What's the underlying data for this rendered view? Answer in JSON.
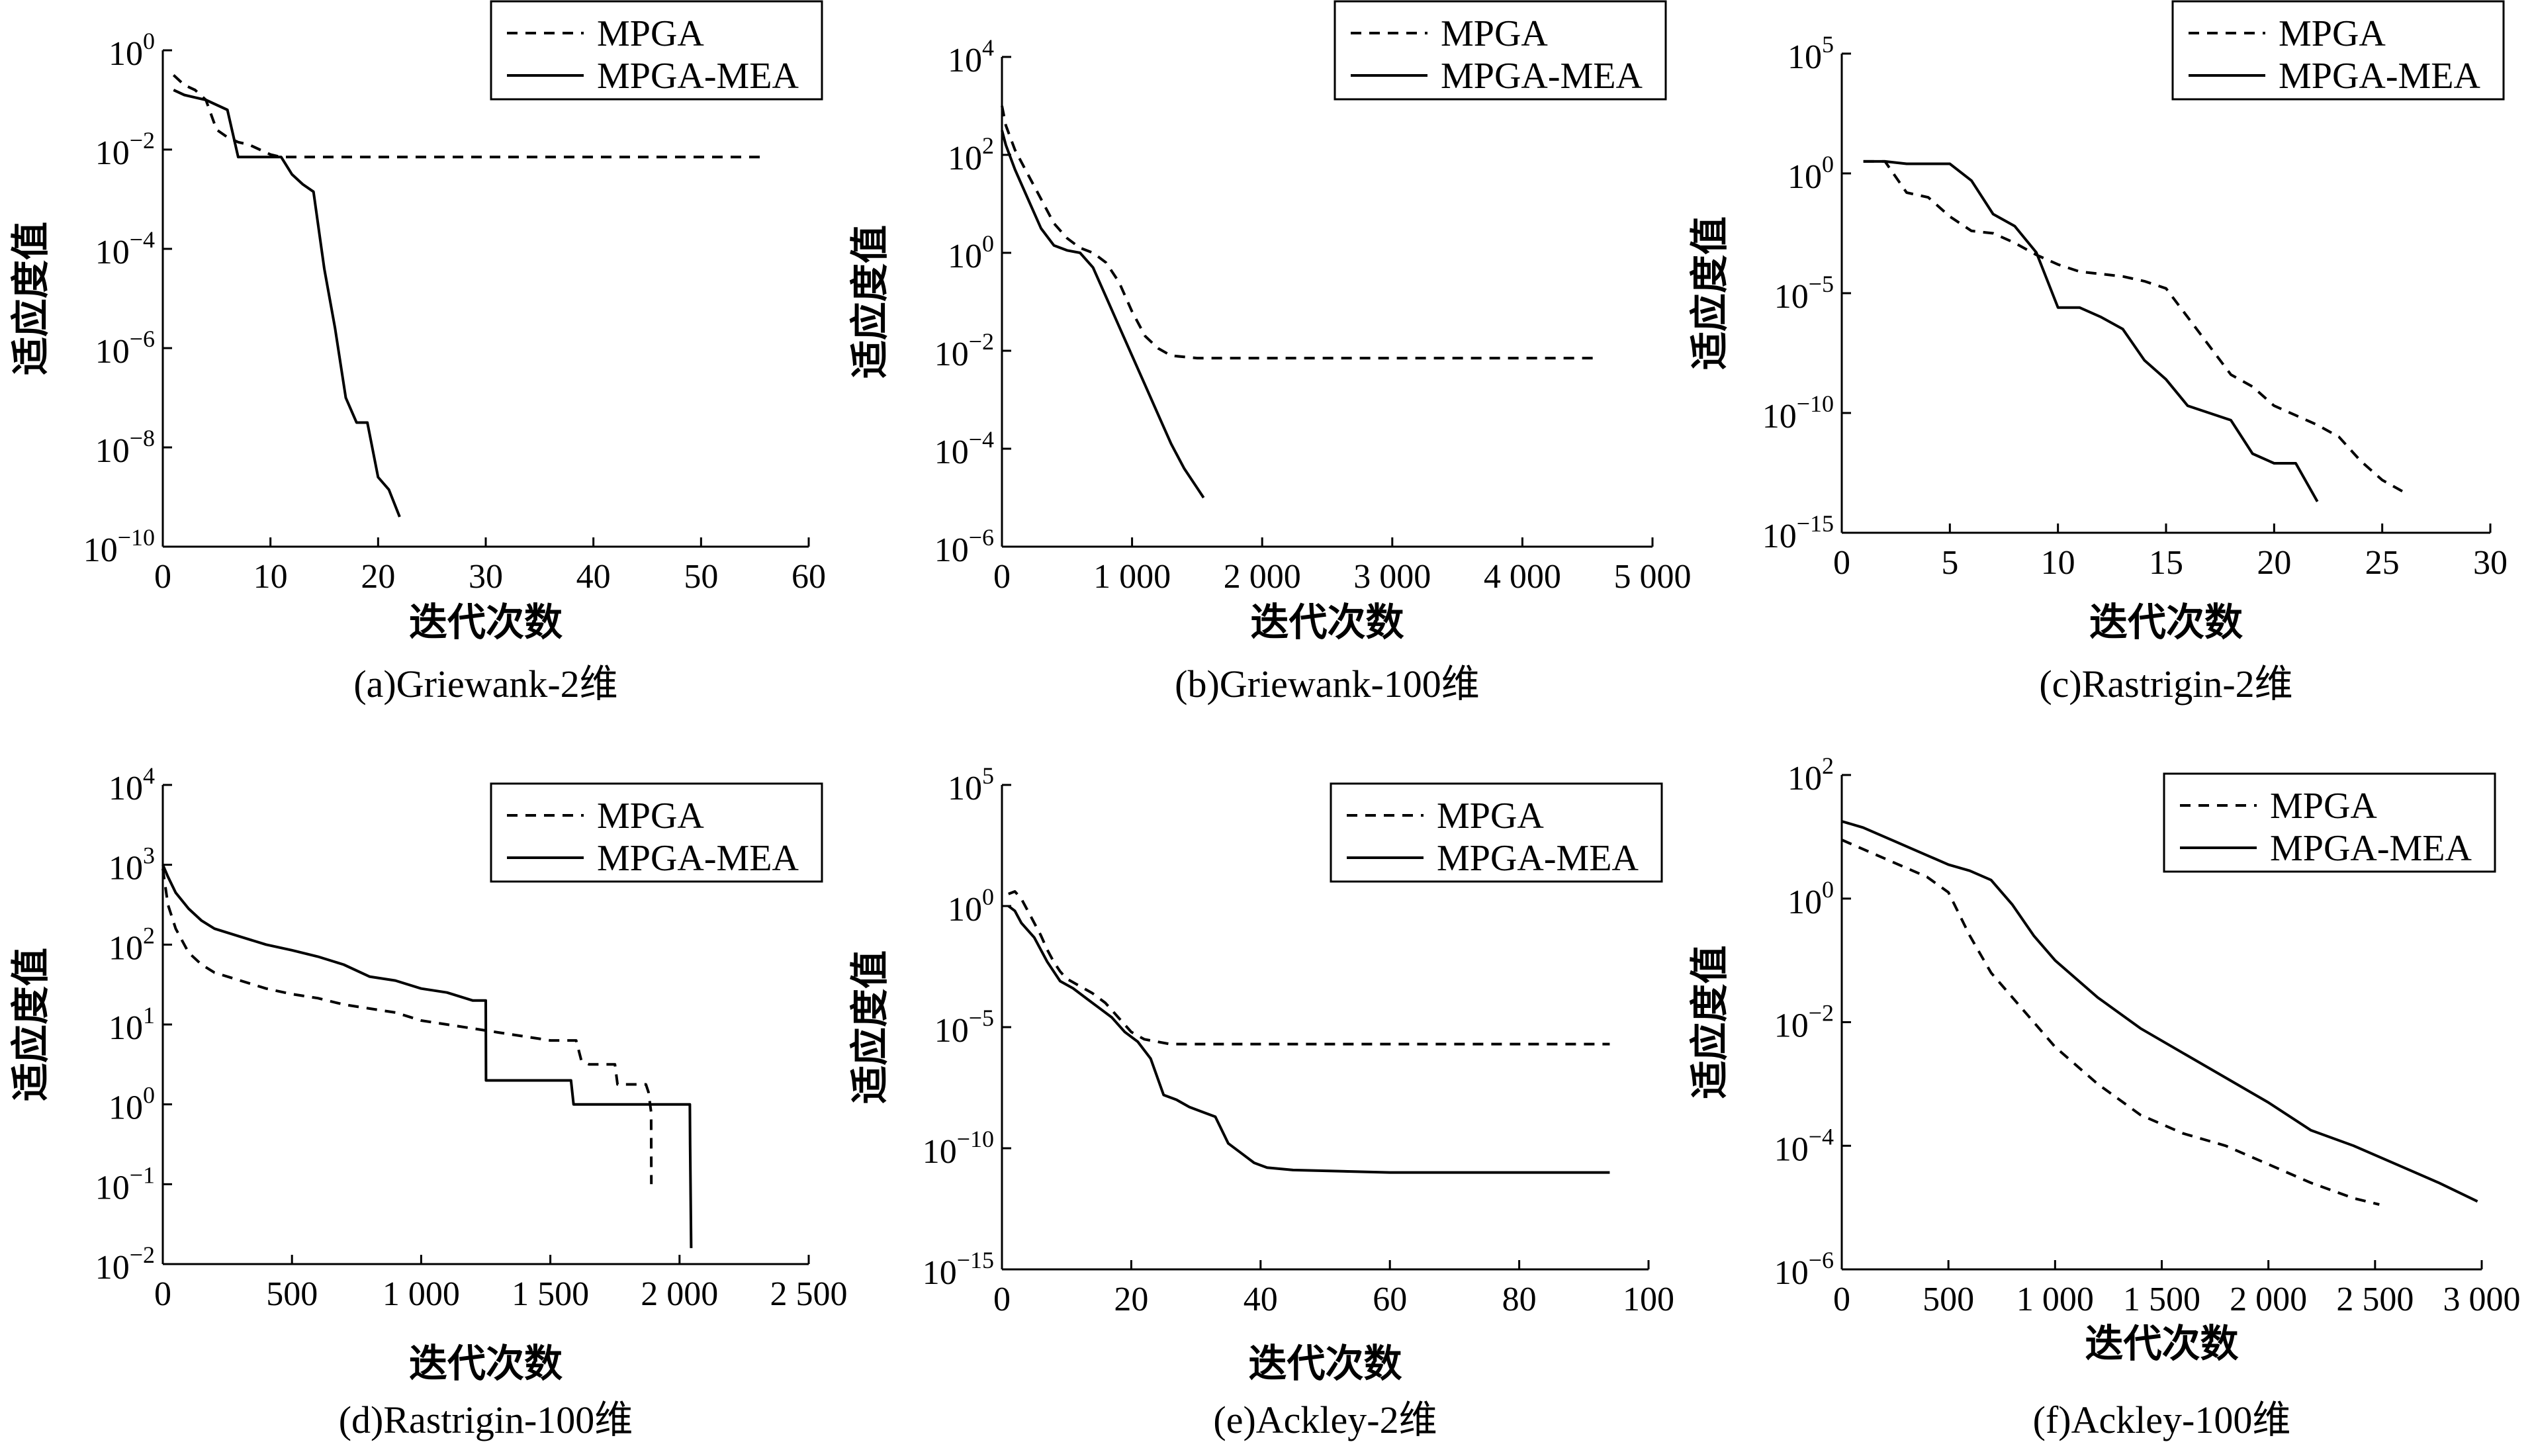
{
  "chart_data": [
    {
      "type": "line",
      "caption": "(a)Griewank-2维",
      "xlabel": "迭代次数",
      "ylabel": "适应度值",
      "yscale": "log",
      "xlim": [
        0,
        60
      ],
      "ylim_exp": [
        -10,
        0
      ],
      "xticks": [
        0,
        10,
        20,
        30,
        40,
        50,
        60
      ],
      "xtick_labels": [
        "0",
        "10",
        "20",
        "30",
        "40",
        "50",
        "60"
      ],
      "yticks_exp": [
        0,
        -2,
        -4,
        -6,
        -8,
        -10
      ],
      "legend": "top-right",
      "series": [
        {
          "name": "MPGA",
          "style": "dashed",
          "x": [
            1,
            2,
            3,
            4,
            5,
            6,
            7,
            8,
            9,
            10,
            11,
            12,
            56
          ],
          "log10y": [
            -0.5,
            -0.7,
            -0.8,
            -1.0,
            -1.6,
            -1.75,
            -1.85,
            -1.9,
            -2.0,
            -2.1,
            -2.15,
            -2.15,
            -2.15
          ]
        },
        {
          "name": "MPGA-MEA",
          "style": "solid",
          "x": [
            1,
            2,
            3,
            4,
            5,
            6,
            7,
            8,
            9,
            10,
            11,
            12,
            13,
            14,
            15,
            16,
            17,
            18,
            19,
            20,
            21,
            22
          ],
          "log10y": [
            -0.8,
            -0.9,
            -0.95,
            -1.0,
            -1.1,
            -1.2,
            -2.15,
            -2.15,
            -2.15,
            -2.15,
            -2.15,
            -2.5,
            -2.7,
            -2.85,
            -4.4,
            -5.6,
            -7.0,
            -7.5,
            -7.5,
            -8.6,
            -8.85,
            -9.4
          ]
        }
      ]
    },
    {
      "type": "line",
      "caption": "(b)Griewank-100维",
      "xlabel": "迭代次数",
      "ylabel": "适应度值",
      "yscale": "log",
      "xlim": [
        0,
        5000
      ],
      "ylim_exp": [
        -6,
        4
      ],
      "xticks": [
        0,
        1000,
        2000,
        3000,
        4000,
        5000
      ],
      "xtick_labels": [
        "0",
        "1 000",
        "2 000",
        "3 000",
        "4 000",
        "5 000"
      ],
      "yticks_exp": [
        4,
        2,
        0,
        -2,
        -4,
        -6
      ],
      "legend": "top-right",
      "series": [
        {
          "name": "MPGA",
          "style": "dashed",
          "x": [
            0,
            30,
            100,
            200,
            300,
            400,
            500,
            600,
            700,
            800,
            900,
            1000,
            1100,
            1200,
            1300,
            1500,
            2000,
            3000,
            4000,
            4550
          ],
          "log10y": [
            3.0,
            2.6,
            2.1,
            1.6,
            1.1,
            0.6,
            0.3,
            0.1,
            0.0,
            -0.2,
            -0.6,
            -1.2,
            -1.7,
            -1.95,
            -2.1,
            -2.15,
            -2.15,
            -2.15,
            -2.15,
            -2.15
          ]
        },
        {
          "name": "MPGA-MEA",
          "style": "solid",
          "x": [
            0,
            30,
            100,
            200,
            300,
            400,
            500,
            600,
            700,
            800,
            900,
            1000,
            1100,
            1200,
            1300,
            1400,
            1500,
            1550
          ],
          "log10y": [
            2.5,
            2.2,
            1.7,
            1.1,
            0.5,
            0.15,
            0.05,
            0.0,
            -0.3,
            -0.9,
            -1.5,
            -2.1,
            -2.7,
            -3.3,
            -3.9,
            -4.4,
            -4.8,
            -5.0
          ]
        }
      ]
    },
    {
      "type": "line",
      "caption": "(c)Rastrigin-2维",
      "xlabel": "迭代次数",
      "ylabel": "适应度值",
      "yscale": "log",
      "xlim": [
        0,
        30
      ],
      "ylim_exp": [
        -15,
        5
      ],
      "xticks": [
        0,
        5,
        10,
        15,
        20,
        25,
        30
      ],
      "xtick_labels": [
        "0",
        "5",
        "10",
        "15",
        "20",
        "25",
        "30"
      ],
      "yticks_exp": [
        5,
        0,
        -5,
        -10,
        -15
      ],
      "legend": "top-right",
      "series": [
        {
          "name": "MPGA",
          "style": "dashed",
          "x": [
            1,
            2,
            3,
            4,
            5,
            6,
            7,
            8,
            9,
            10,
            11,
            12,
            13,
            14,
            15,
            16,
            17,
            18,
            19,
            20,
            21,
            22,
            23,
            24,
            25,
            26
          ],
          "log10y": [
            0.5,
            0.5,
            -0.8,
            -1.0,
            -1.8,
            -2.4,
            -2.5,
            -2.9,
            -3.4,
            -3.8,
            -4.1,
            -4.2,
            -4.3,
            -4.5,
            -4.8,
            -6.0,
            -7.2,
            -8.4,
            -8.9,
            -9.7,
            -10.1,
            -10.5,
            -11.0,
            -12.0,
            -12.8,
            -13.3
          ]
        },
        {
          "name": "MPGA-MEA",
          "style": "solid",
          "x": [
            1,
            2,
            3,
            4,
            5,
            6,
            7,
            8,
            9,
            10,
            11,
            12,
            13,
            14,
            15,
            16,
            17,
            18,
            19,
            20,
            21,
            22
          ],
          "log10y": [
            0.5,
            0.5,
            0.4,
            0.4,
            0.4,
            -0.3,
            -1.7,
            -2.2,
            -3.3,
            -5.6,
            -5.6,
            -6.0,
            -6.5,
            -7.8,
            -8.6,
            -9.7,
            -10.0,
            -10.3,
            -11.7,
            -12.1,
            -12.1,
            -13.7
          ]
        }
      ]
    },
    {
      "type": "line",
      "caption": "(d)Rastrigin-100维",
      "xlabel": "迭代次数",
      "ylabel": "适应度值",
      "yscale": "log",
      "xlim": [
        0,
        2500
      ],
      "ylim_exp": [
        -2,
        4
      ],
      "xticks": [
        0,
        500,
        1000,
        1500,
        2000,
        2500
      ],
      "xtick_labels": [
        "0",
        "500",
        "1 000",
        "1 500",
        "2 000",
        "2 500"
      ],
      "yticks_exp": [
        4,
        3,
        2,
        1,
        0,
        -1,
        -2
      ],
      "legend": "top-right",
      "series": [
        {
          "name": "MPGA",
          "style": "dashed",
          "x": [
            0,
            20,
            50,
            100,
            150,
            200,
            300,
            400,
            500,
            600,
            700,
            800,
            900,
            1000,
            1100,
            1200,
            1300,
            1400,
            1500,
            1600,
            1620,
            1650,
            1700,
            1750,
            1760,
            1850,
            1870,
            1880,
            1890,
            1891
          ],
          "log10y": [
            2.95,
            2.5,
            2.2,
            1.9,
            1.75,
            1.65,
            1.55,
            1.45,
            1.38,
            1.33,
            1.25,
            1.2,
            1.15,
            1.05,
            1.0,
            0.95,
            0.9,
            0.85,
            0.8,
            0.8,
            0.55,
            0.5,
            0.5,
            0.5,
            0.25,
            0.25,
            0.25,
            0.15,
            -0.1,
            -1.0
          ]
        },
        {
          "name": "MPGA-MEA",
          "style": "solid",
          "x": [
            0,
            20,
            50,
            100,
            150,
            200,
            300,
            400,
            500,
            600,
            700,
            800,
            900,
            1000,
            1100,
            1200,
            1250,
            1251,
            1580,
            1590,
            1600,
            2040,
            2041,
            2045
          ],
          "log10y": [
            3.0,
            2.85,
            2.65,
            2.45,
            2.3,
            2.2,
            2.1,
            2.0,
            1.93,
            1.85,
            1.75,
            1.6,
            1.55,
            1.45,
            1.4,
            1.3,
            1.3,
            0.3,
            0.3,
            0.0,
            0.0,
            0.0,
            -0.5,
            -1.8
          ]
        }
      ]
    },
    {
      "type": "line",
      "caption": "(e)Ackley-2维",
      "xlabel": "迭代次数",
      "ylabel": "适应度值",
      "yscale": "log",
      "xlim": [
        0,
        100
      ],
      "ylim_exp": [
        -15,
        5
      ],
      "xticks": [
        0,
        20,
        40,
        60,
        80,
        100
      ],
      "xtick_labels": [
        "0",
        "20",
        "40",
        "60",
        "80",
        "100"
      ],
      "yticks_exp": [
        5,
        0,
        -5,
        -10,
        -15
      ],
      "legend": "top-right",
      "series": [
        {
          "name": "MPGA",
          "style": "dashed",
          "x": [
            1,
            2,
            3,
            4,
            5,
            6,
            7,
            8,
            9,
            10,
            12,
            14,
            16,
            18,
            20,
            22,
            24,
            26,
            28,
            30,
            40,
            60,
            80,
            94
          ],
          "log10y": [
            0.5,
            0.6,
            0.3,
            -0.2,
            -0.7,
            -1.2,
            -1.8,
            -2.3,
            -2.7,
            -3.0,
            -3.3,
            -3.6,
            -4.0,
            -4.6,
            -5.2,
            -5.5,
            -5.6,
            -5.7,
            -5.7,
            -5.7,
            -5.7,
            -5.7,
            -5.7,
            -5.7
          ]
        },
        {
          "name": "MPGA-MEA",
          "style": "solid",
          "x": [
            1,
            2,
            3,
            5,
            7,
            9,
            11,
            13,
            15,
            17,
            19,
            21,
            23,
            25,
            27,
            29,
            31,
            33,
            35,
            37,
            39,
            41,
            45,
            60,
            80,
            94
          ],
          "log10y": [
            0.0,
            -0.2,
            -0.7,
            -1.3,
            -2.3,
            -3.1,
            -3.4,
            -3.8,
            -4.2,
            -4.6,
            -5.2,
            -5.6,
            -6.3,
            -7.8,
            -8.0,
            -8.3,
            -8.5,
            -8.7,
            -9.8,
            -10.2,
            -10.6,
            -10.8,
            -10.9,
            -11.0,
            -11.0,
            -11.0
          ]
        }
      ]
    },
    {
      "type": "line",
      "caption": "(f)Ackley-100维",
      "xlabel": "迭代次数",
      "ylabel": "适应度值",
      "yscale": "log",
      "xlim": [
        0,
        3000
      ],
      "ylim_exp": [
        -6,
        2
      ],
      "xticks": [
        0,
        500,
        1000,
        1500,
        2000,
        2500,
        3000
      ],
      "xtick_labels": [
        "0",
        "500",
        "1 000",
        "1 500",
        "2 000",
        "2 500",
        "3 000"
      ],
      "yticks_exp": [
        2,
        0,
        -2,
        -4,
        -6
      ],
      "legend": "top-right",
      "series": [
        {
          "name": "MPGA",
          "style": "dashed",
          "x": [
            0,
            100,
            200,
            300,
            400,
            500,
            600,
            700,
            800,
            900,
            1000,
            1200,
            1400,
            1600,
            1800,
            2000,
            2200,
            2400,
            2520
          ],
          "log10y": [
            0.95,
            0.8,
            0.65,
            0.5,
            0.35,
            0.1,
            -0.6,
            -1.2,
            -1.6,
            -2.0,
            -2.4,
            -3.0,
            -3.5,
            -3.8,
            -4.0,
            -4.3,
            -4.6,
            -4.85,
            -4.95
          ]
        },
        {
          "name": "MPGA-MEA",
          "style": "solid",
          "x": [
            0,
            100,
            200,
            300,
            400,
            500,
            600,
            700,
            800,
            900,
            1000,
            1200,
            1400,
            1600,
            1800,
            2000,
            2200,
            2400,
            2600,
            2800,
            2980
          ],
          "log10y": [
            1.25,
            1.15,
            1.0,
            0.85,
            0.7,
            0.55,
            0.45,
            0.3,
            -0.1,
            -0.6,
            -1.0,
            -1.6,
            -2.1,
            -2.5,
            -2.9,
            -3.3,
            -3.75,
            -4.0,
            -4.3,
            -4.6,
            -4.9
          ]
        }
      ]
    }
  ]
}
